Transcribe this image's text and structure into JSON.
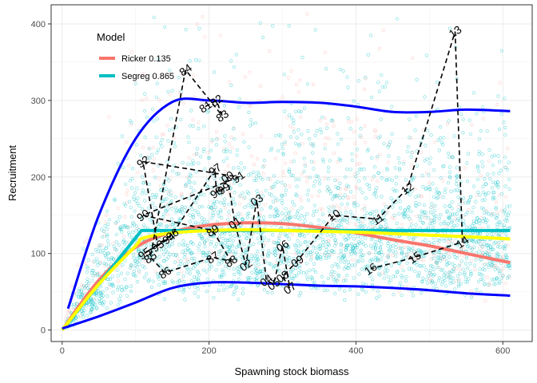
{
  "chart_data": {
    "type": "scatter",
    "xlabel": "Spawning stock biomass",
    "ylabel": "Recruitment",
    "xlim": [
      -15,
      640
    ],
    "ylim": [
      -15,
      425
    ],
    "xticks": [
      0,
      200,
      400,
      600
    ],
    "yticks": [
      0,
      100,
      200,
      300,
      400
    ],
    "grid": true,
    "legend": {
      "title": "Model",
      "placement": "top-left",
      "entries": [
        {
          "label": "Ricker 0.135",
          "color": "#F8766D"
        },
        {
          "label": "Segreg 0.865",
          "color": "#00BFC4"
        }
      ]
    },
    "colors": {
      "ricker": "#F8766D",
      "segreg": "#00BFC4",
      "fit": "#FFFF00",
      "bands": "#0000FF",
      "observed": "#000000"
    },
    "series": [
      {
        "name": "Ricker 0.135",
        "kind": "fitted-curve",
        "x": [
          0,
          50,
          100,
          150,
          200,
          250,
          300,
          350,
          400,
          450,
          500,
          550,
          610
        ],
        "y": [
          0,
          65,
          108,
          128,
          137,
          140,
          139,
          134,
          127,
          118,
          110,
          100,
          88
        ]
      },
      {
        "name": "Segreg 0.865",
        "kind": "fitted-curve",
        "x": [
          0,
          108,
          610
        ],
        "y": [
          0,
          130,
          130
        ]
      },
      {
        "kind": "model-average",
        "x": [
          0,
          50,
          100,
          110,
          150,
          200,
          250,
          300,
          350,
          400,
          450,
          500,
          550,
          610
        ],
        "y": [
          0,
          60,
          110,
          120,
          127,
          130,
          131,
          130,
          129,
          128,
          126,
          124,
          122,
          119
        ]
      },
      {
        "kind": "upper-band",
        "x": [
          8,
          50,
          100,
          150,
          200,
          250,
          300,
          350,
          400,
          450,
          500,
          550,
          610
        ],
        "y": [
          28,
          150,
          250,
          298,
          300,
          297,
          298,
          297,
          292,
          285,
          285,
          288,
          286
        ]
      },
      {
        "kind": "lower-band",
        "x": [
          0,
          50,
          100,
          150,
          200,
          250,
          300,
          350,
          400,
          450,
          500,
          550,
          610
        ],
        "y": [
          2,
          18,
          36,
          55,
          62,
          62,
          60,
          58,
          57,
          55,
          52,
          48,
          45
        ]
      },
      {
        "kind": "observed",
        "labels": [
          "81",
          "82",
          "83",
          "84",
          "85",
          "86",
          "87",
          "88",
          "89",
          "90",
          "91",
          "92",
          "93",
          "94",
          "95",
          "96",
          "97",
          "98",
          "99",
          "00",
          "01",
          "02",
          "03",
          "04",
          "05",
          "06",
          "07",
          "08",
          "09",
          "10",
          "11",
          "12",
          "13",
          "14",
          "15",
          "16"
        ],
        "x": [
          195,
          210,
          218,
          168,
          120,
          140,
          205,
          230,
          205,
          110,
          240,
          110,
          130,
          145,
          112,
          150,
          208,
          210,
          220,
          225,
          235,
          250,
          265,
          278,
          288,
          300,
          310,
          300,
          320,
          370,
          430,
          470,
          535,
          545,
          480,
          420
        ],
        "y": [
          292,
          300,
          280,
          340,
          95,
          75,
          95,
          90,
          130,
          150,
          200,
          220,
          110,
          120,
          100,
          125,
          210,
          180,
          185,
          200,
          140,
          85,
          170,
          65,
          60,
          110,
          55,
          70,
          90,
          150,
          145,
          185,
          390,
          115,
          95,
          80
        ]
      }
    ]
  }
}
